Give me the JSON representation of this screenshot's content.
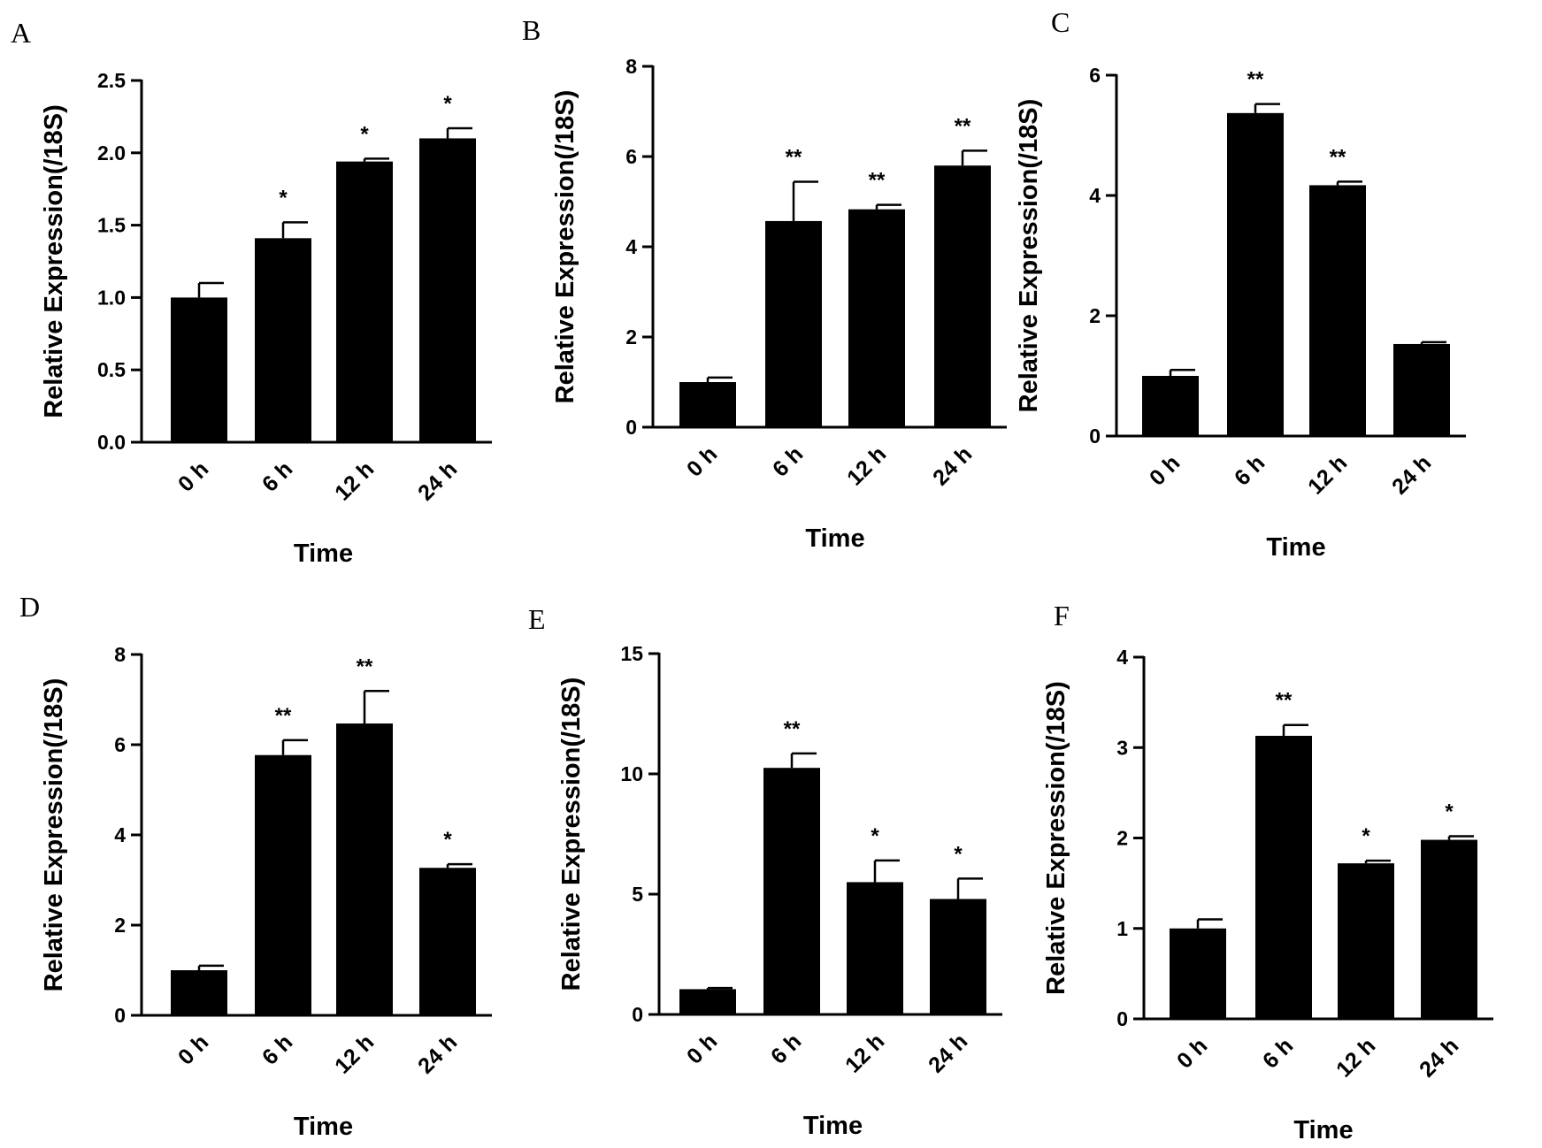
{
  "chart_data": [
    {
      "panel": "A",
      "type": "bar",
      "categories": [
        "0 h",
        "6 h",
        "12 h",
        "24 h"
      ],
      "values": [
        1.0,
        1.41,
        1.94,
        2.1
      ],
      "errors": [
        0.1,
        0.11,
        0.02,
        0.07
      ],
      "significance": [
        "",
        "*",
        "*",
        "*"
      ],
      "ylabel": "Relative  Expression(/18S)",
      "xlabel": "Time",
      "ylim": [
        0,
        2.5
      ],
      "yticks": [
        0.0,
        0.5,
        1.0,
        1.5,
        2.0,
        2.5
      ],
      "ytick_labels": [
        "0.0",
        "0.5",
        "1.0",
        "1.5",
        "2.0",
        "2.5"
      ],
      "bar_color": "#000000"
    },
    {
      "panel": "B",
      "type": "bar",
      "categories": [
        "0 h",
        "6 h",
        "12 h",
        "24 h"
      ],
      "values": [
        1.0,
        4.57,
        4.83,
        5.8
      ],
      "errors": [
        0.1,
        0.87,
        0.1,
        0.33
      ],
      "significance": [
        "",
        "**",
        "**",
        "**"
      ],
      "ylabel": "Relative  Expression(/18S)",
      "xlabel": "Time",
      "ylim": [
        0,
        8
      ],
      "yticks": [
        0,
        2,
        4,
        6,
        8
      ],
      "ytick_labels": [
        "0",
        "2",
        "4",
        "6",
        "8"
      ],
      "bar_color": "#000000"
    },
    {
      "panel": "C",
      "type": "bar",
      "categories": [
        "0 h",
        "6 h",
        "12 h",
        "24 h"
      ],
      "values": [
        1.0,
        5.37,
        4.17,
        1.53
      ],
      "errors": [
        0.1,
        0.15,
        0.06,
        0.03
      ],
      "significance": [
        "",
        "**",
        "**",
        ""
      ],
      "ylabel": "Relative  Expression(/18S)",
      "xlabel": "Time",
      "ylim": [
        0,
        6
      ],
      "yticks": [
        0,
        2,
        4,
        6
      ],
      "ytick_labels": [
        "0",
        "2",
        "4",
        "6"
      ],
      "bar_color": "#000000"
    },
    {
      "panel": "D",
      "type": "bar",
      "categories": [
        "0 h",
        "6 h",
        "12 h",
        "24 h"
      ],
      "values": [
        1.0,
        5.77,
        6.47,
        3.27
      ],
      "errors": [
        0.1,
        0.33,
        0.72,
        0.08
      ],
      "significance": [
        "",
        "**",
        "**",
        "*"
      ],
      "ylabel": "Relative  Expression(/18S)",
      "xlabel": "Time",
      "ylim": [
        0,
        8
      ],
      "yticks": [
        0,
        2,
        4,
        6,
        8
      ],
      "ytick_labels": [
        "0",
        "2",
        "4",
        "6",
        "8"
      ],
      "bar_color": "#000000"
    },
    {
      "panel": "E",
      "type": "bar",
      "categories": [
        "0 h",
        "6 h",
        "12 h",
        "24 h"
      ],
      "values": [
        1.05,
        10.25,
        5.5,
        4.8
      ],
      "errors": [
        0.05,
        0.6,
        0.9,
        0.85
      ],
      "significance": [
        "",
        "**",
        "*",
        "*"
      ],
      "ylabel": "Relative  Expression(/18S)",
      "xlabel": "Time",
      "ylim": [
        0,
        15
      ],
      "yticks": [
        0,
        5,
        10,
        15
      ],
      "ytick_labels": [
        "0",
        "5",
        "10",
        "15"
      ],
      "bar_color": "#000000"
    },
    {
      "panel": "F",
      "type": "bar",
      "categories": [
        "0 h",
        "6 h",
        "12 h",
        "24 h"
      ],
      "values": [
        1.0,
        3.13,
        1.72,
        1.98
      ],
      "errors": [
        0.1,
        0.12,
        0.03,
        0.04
      ],
      "significance": [
        "",
        "**",
        "*",
        "*"
      ],
      "ylabel": "Relative  Expression(/18S)",
      "xlabel": "Time",
      "ylim": [
        0,
        4
      ],
      "yticks": [
        0,
        1,
        2,
        3,
        4
      ],
      "ytick_labels": [
        "0",
        "1",
        "2",
        "3",
        "4"
      ],
      "bar_color": "#000000"
    }
  ]
}
